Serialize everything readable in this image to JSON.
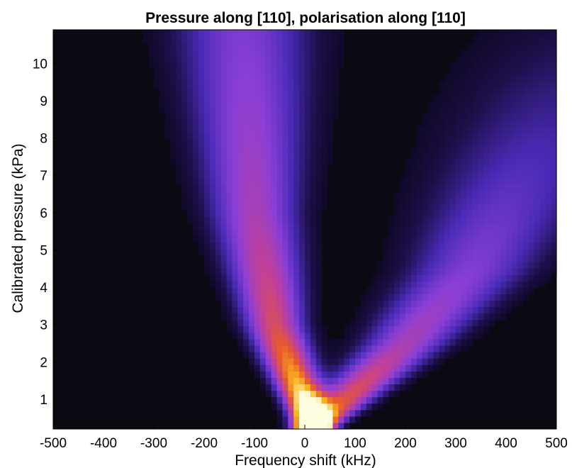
{
  "chart_data": {
    "type": "heatmap",
    "title": "Pressure along [110], polarisation along [110]",
    "xlabel": "Frequency shift (kHz)",
    "ylabel": "Calibrated pressure (kPa)",
    "xlim": [
      -500,
      500
    ],
    "ylim": [
      0.2,
      10.9
    ],
    "x_ticks": [
      -500,
      -400,
      -300,
      -200,
      -100,
      0,
      100,
      200,
      300,
      400,
      500
    ],
    "y_ticks": [
      1,
      2,
      3,
      4,
      5,
      6,
      7,
      8,
      9,
      10
    ],
    "x_tick_labels": [
      "-500",
      "-400",
      "-300",
      "-200",
      "-100",
      "0",
      "100",
      "200",
      "300",
      "400",
      "500"
    ],
    "y_tick_labels": [
      "1",
      "2",
      "3",
      "4",
      "5",
      "6",
      "7",
      "8",
      "9",
      "10"
    ],
    "colormap": [
      "#05040d",
      "#1e0f4a",
      "#4a2bb8",
      "#8a3fd6",
      "#c0409a",
      "#e85a2a",
      "#f9b81f",
      "#fffde0"
    ],
    "background_color": "#0b0a12",
    "grid": false,
    "legend": "none",
    "features": [
      {
        "name": "left branch",
        "peak_x": [
          15,
          -60,
          -100,
          -120
        ],
        "at_pressure": [
          0.3,
          3,
          6,
          10.5
        ],
        "intensity": [
          1.0,
          0.6,
          0.45,
          0.35
        ]
      },
      {
        "name": "right branch",
        "peak_x": [
          40,
          200,
          330,
          430
        ],
        "at_pressure": [
          0.5,
          2.5,
          4.5,
          7
        ],
        "intensity": [
          0.7,
          0.45,
          0.35,
          0.25
        ]
      }
    ]
  }
}
